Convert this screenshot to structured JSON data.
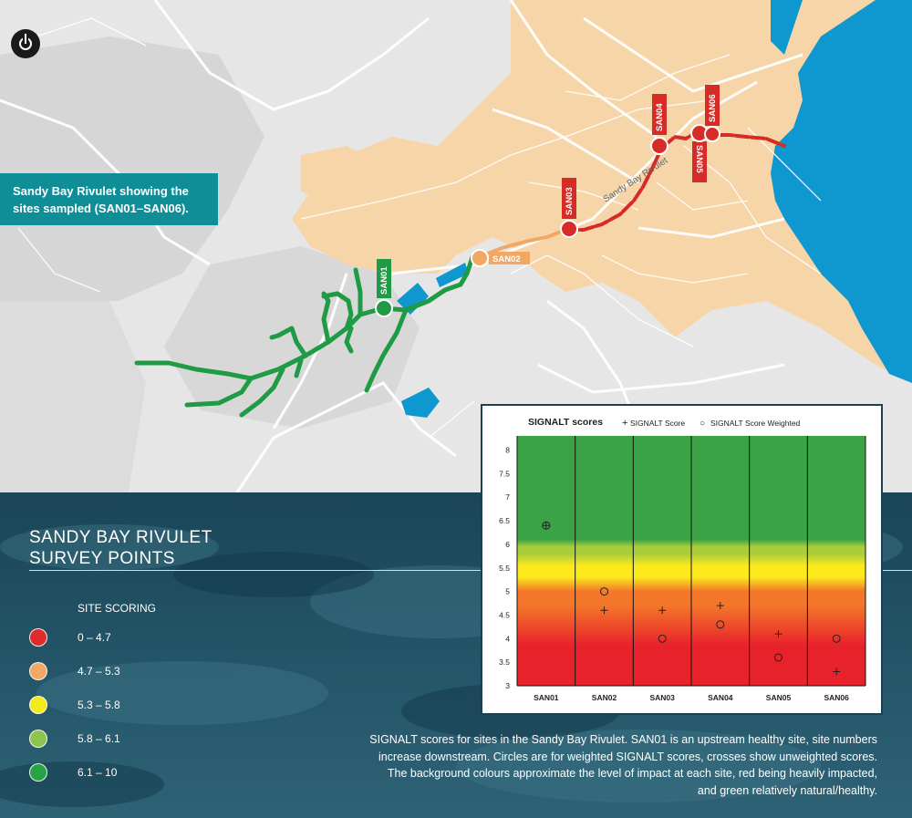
{
  "callout": {
    "line1": "Sandy Bay Rivulet showing the",
    "line2": "sites sampled (SAN01–SAN06)."
  },
  "icons": {
    "top_left": "power-icon"
  },
  "map": {
    "street_label": "Sandy Bay Rivulet",
    "sites": [
      {
        "id": "SAN01",
        "color": "#1f9a45"
      },
      {
        "id": "SAN02",
        "color": "#f2a863"
      },
      {
        "id": "SAN03",
        "color": "#d62b26"
      },
      {
        "id": "SAN04",
        "color": "#d62b26"
      },
      {
        "id": "SAN05",
        "color": "#d62b26"
      },
      {
        "id": "SAN06",
        "color": "#d62b26"
      }
    ],
    "colors": {
      "land": "#e6e6e6",
      "urban": "#f6d6a8",
      "water": "#0f97cf",
      "green_stream": "#1f9a45",
      "orange_stream": "#f2a863",
      "red_stream": "#d62b26"
    }
  },
  "panel": {
    "title_line1": "SANDY BAY RIVULET",
    "title_line2": "SURVEY POINTS",
    "legend_title": "SITE SCORING",
    "legend": [
      {
        "label": "0 – 4.7",
        "color": "#e02b2b"
      },
      {
        "label": "4.7 – 5.3",
        "color": "#f2a863"
      },
      {
        "label": "5.3 – 5.8",
        "color": "#f2ea1a"
      },
      {
        "label": "5.8 – 6.1",
        "color": "#8cc44e"
      },
      {
        "label": "6.1 – 10",
        "color": "#27a343"
      }
    ]
  },
  "chart_data": {
    "type": "scatter",
    "title": "SIGNALT scores",
    "legend": [
      {
        "marker": "+",
        "label": "SIGNALT Score"
      },
      {
        "marker": "○",
        "label": "SIGNALT Score Weighted"
      }
    ],
    "categories": [
      "SAN01",
      "SAN02",
      "SAN03",
      "SAN04",
      "SAN05",
      "SAN06"
    ],
    "series": [
      {
        "name": "SIGNALT Score",
        "marker": "cross",
        "values": [
          6.4,
          4.6,
          4.6,
          4.7,
          4.1,
          3.3
        ]
      },
      {
        "name": "SIGNALT Score Weighted",
        "marker": "circle",
        "values": [
          6.4,
          5.0,
          4.0,
          4.3,
          3.6,
          4.0
        ]
      }
    ],
    "yticks": [
      "8",
      "7.5",
      "7",
      "6.5",
      "6",
      "5.5",
      "5",
      "4.5",
      "4",
      "3.5",
      "3"
    ],
    "ylim": [
      3,
      8.3
    ],
    "grid": false,
    "legend_placement": "top",
    "background_bands": [
      {
        "from": 3.0,
        "color": "#e8222a"
      },
      {
        "from": 4.7,
        "color": "#f4762a"
      },
      {
        "from": 5.3,
        "color": "#fbe91c"
      },
      {
        "from": 5.8,
        "color": "#a9cd3a"
      },
      {
        "from": 6.1,
        "color": "#3aa345"
      }
    ]
  },
  "caption": {
    "line1": "SIGNALT scores for sites in the Sandy Bay Rivulet. SAN01 is an upstream healthy site, site numbers",
    "line2": "increase downstream. Circles are for weighted SIGNALT scores, crosses show unweighted scores.",
    "line3": "The background colours approximate the level of impact at each site, red being heavily impacted,",
    "line4": "and green relatively natural/healthy."
  }
}
